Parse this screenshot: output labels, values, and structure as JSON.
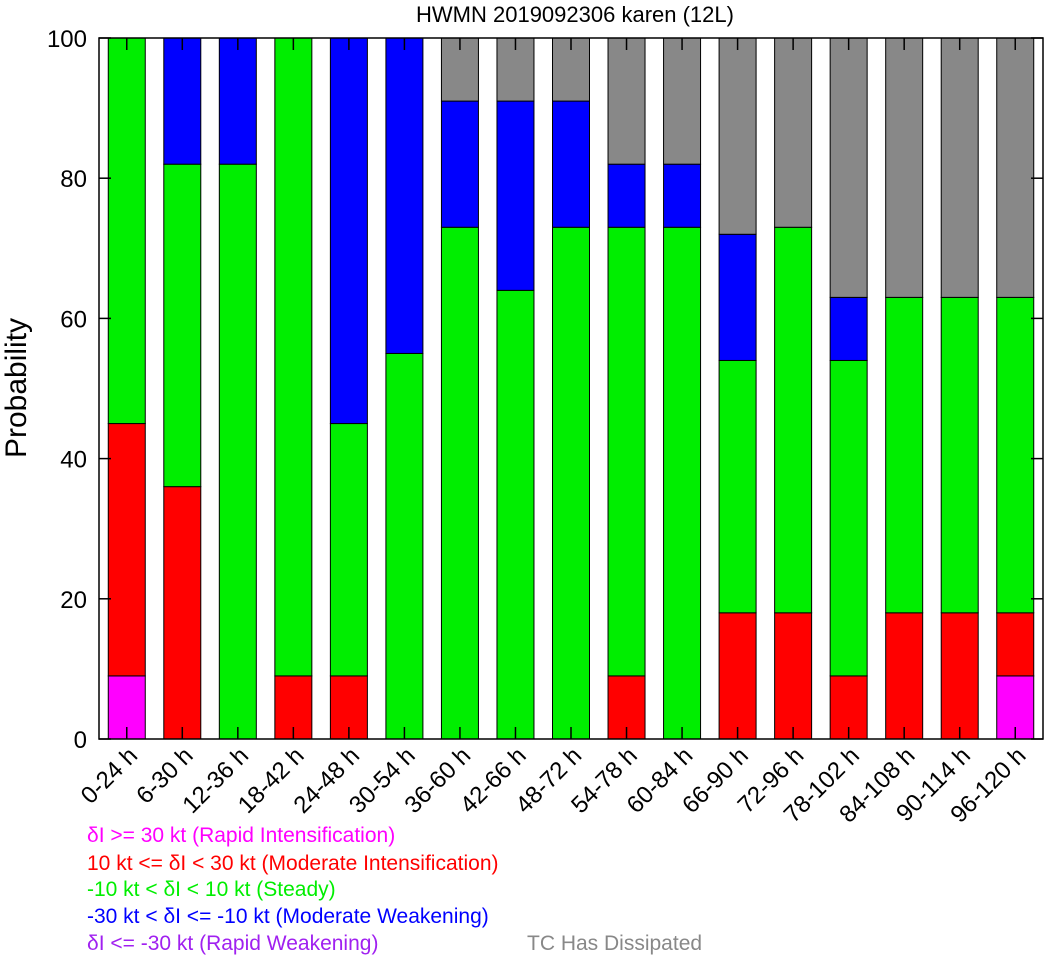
{
  "chart_data": {
    "type": "bar",
    "stacked": true,
    "title": "HWMN 2019092306 karen (12L)",
    "xlabel": "",
    "ylabel": "Probability",
    "ylim": [
      0,
      100
    ],
    "yticks": [
      0,
      20,
      40,
      60,
      80,
      100
    ],
    "grid": false,
    "categories": [
      "0-24 h",
      "6-30 h",
      "12-36 h",
      "18-42 h",
      "24-48 h",
      "30-54 h",
      "36-60 h",
      "42-66 h",
      "48-72 h",
      "54-78 h",
      "60-84 h",
      "66-90 h",
      "72-96 h",
      "78-102 h",
      "84-108 h",
      "90-114 h",
      "96-120 h"
    ],
    "series": [
      {
        "name": "δI >= 30 kt (Rapid Intensification)",
        "color": "#ff00ff",
        "values": [
          9,
          0,
          0,
          0,
          0,
          0,
          0,
          0,
          0,
          0,
          0,
          0,
          0,
          0,
          0,
          0,
          9
        ]
      },
      {
        "name": "10 kt <= δI < 30 kt (Moderate Intensification)",
        "color": "#ff0000",
        "values": [
          36,
          36,
          0,
          9,
          9,
          0,
          0,
          0,
          0,
          9,
          0,
          18,
          18,
          9,
          18,
          18,
          9
        ]
      },
      {
        "name": "-10 kt < δI < 10 kt (Steady)",
        "color": "#00ee00",
        "values": [
          55,
          46,
          82,
          91,
          36,
          55,
          73,
          64,
          73,
          64,
          73,
          36,
          55,
          45,
          45,
          45,
          45
        ]
      },
      {
        "name": "-30 kt < δI <= -10 kt (Moderate Weakening)",
        "color": "#0000ff",
        "values": [
          0,
          18,
          18,
          0,
          55,
          45,
          18,
          27,
          18,
          9,
          9,
          18,
          0,
          9,
          0,
          0,
          0
        ]
      },
      {
        "name": "δI <= -30 kt (Rapid Weakening)",
        "color": "#a020f0",
        "values": [
          0,
          0,
          0,
          0,
          0,
          0,
          0,
          0,
          0,
          0,
          0,
          0,
          0,
          0,
          0,
          0,
          0
        ]
      },
      {
        "name": "TC Has Dissipated",
        "color": "#888888",
        "values": [
          0,
          0,
          0,
          0,
          0,
          0,
          9,
          9,
          9,
          18,
          18,
          28,
          27,
          37,
          37,
          37,
          37
        ]
      }
    ]
  }
}
